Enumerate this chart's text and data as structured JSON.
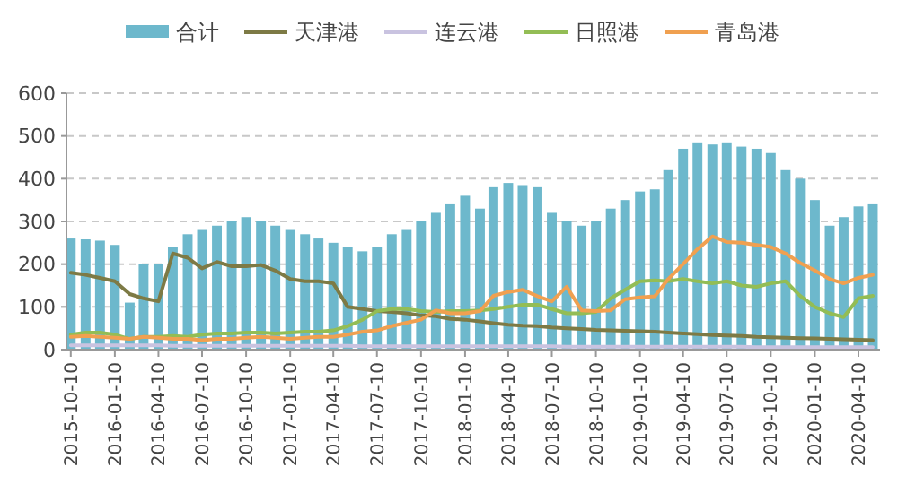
{
  "chart_data": {
    "type": "line",
    "x": [
      "2015-10-10",
      "2015-11-10",
      "2015-12-10",
      "2016-01-10",
      "2016-02-10",
      "2016-03-10",
      "2016-04-10",
      "2016-05-10",
      "2016-06-10",
      "2016-07-10",
      "2016-08-10",
      "2016-09-10",
      "2016-10-10",
      "2016-11-10",
      "2016-12-10",
      "2017-01-10",
      "2017-02-10",
      "2017-03-10",
      "2017-04-10",
      "2017-05-10",
      "2017-06-10",
      "2017-07-10",
      "2017-08-10",
      "2017-09-10",
      "2017-10-10",
      "2017-11-10",
      "2017-12-10",
      "2018-01-10",
      "2018-02-10",
      "2018-03-10",
      "2018-04-10",
      "2018-05-10",
      "2018-06-10",
      "2018-07-10",
      "2018-08-10",
      "2018-09-10",
      "2018-10-10",
      "2018-11-10",
      "2018-12-10",
      "2019-01-10",
      "2019-02-10",
      "2019-03-10",
      "2019-04-10",
      "2019-05-10",
      "2019-06-10",
      "2019-07-10",
      "2019-08-10",
      "2019-09-10",
      "2019-10-10",
      "2019-11-10",
      "2019-12-10",
      "2020-01-10",
      "2020-02-10",
      "2020-03-10",
      "2020-04-10",
      "2020-05-10"
    ],
    "series": [
      {
        "name": "合计",
        "type": "bar",
        "color": "#6db8cc",
        "values": [
          260,
          258,
          255,
          245,
          110,
          200,
          200,
          240,
          270,
          280,
          290,
          300,
          310,
          300,
          290,
          280,
          270,
          260,
          250,
          240,
          230,
          240,
          270,
          280,
          300,
          320,
          340,
          360,
          330,
          380,
          390,
          385,
          380,
          320,
          300,
          290,
          300,
          330,
          350,
          370,
          375,
          420,
          470,
          485,
          480,
          485,
          475,
          470,
          460,
          420,
          400,
          350,
          290,
          310,
          335,
          340
        ]
      },
      {
        "name": "天津港",
        "color": "#7d7a45",
        "values": [
          180,
          175,
          168,
          160,
          130,
          120,
          113,
          225,
          215,
          190,
          205,
          195,
          195,
          198,
          185,
          165,
          160,
          160,
          155,
          100,
          95,
          90,
          88,
          85,
          80,
          78,
          72,
          70,
          66,
          62,
          58,
          56,
          55,
          52,
          50,
          48,
          46,
          45,
          44,
          43,
          42,
          40,
          38,
          36,
          34,
          33,
          32,
          30,
          29,
          28,
          27,
          26,
          25,
          24,
          23,
          22
        ]
      },
      {
        "name": "连云港",
        "color": "#c9c3e0",
        "values": [
          10,
          10,
          10,
          10,
          10,
          10,
          10,
          9,
          9,
          9,
          9,
          9,
          9,
          9,
          9,
          9,
          9,
          9,
          9,
          9,
          8,
          8,
          8,
          8,
          8,
          8,
          8,
          8,
          8,
          8,
          8,
          8,
          8,
          8,
          7,
          7,
          7,
          7,
          7,
          7,
          7,
          7,
          7,
          7,
          7,
          7,
          7,
          6,
          6,
          6,
          6,
          6,
          6,
          6,
          6,
          6
        ]
      },
      {
        "name": "日照港",
        "color": "#93bd55",
        "values": [
          35,
          40,
          40,
          35,
          25,
          30,
          30,
          32,
          30,
          35,
          38,
          38,
          40,
          40,
          38,
          40,
          42,
          42,
          45,
          55,
          70,
          90,
          95,
          95,
          90,
          88,
          90,
          90,
          92,
          95,
          100,
          105,
          105,
          95,
          85,
          85,
          88,
          120,
          140,
          160,
          162,
          160,
          165,
          160,
          155,
          160,
          150,
          147,
          155,
          160,
          126,
          100,
          85,
          76,
          120,
          126
        ]
      },
      {
        "name": "青岛港",
        "color": "#f0a050",
        "values": [
          30,
          32,
          30,
          28,
          25,
          30,
          28,
          25,
          25,
          22,
          25,
          25,
          28,
          30,
          28,
          25,
          28,
          30,
          30,
          35,
          42,
          45,
          55,
          63,
          70,
          92,
          85,
          85,
          90,
          126,
          135,
          140,
          125,
          113,
          147,
          92,
          90,
          92,
          118,
          122,
          125,
          165,
          200,
          235,
          265,
          252,
          250,
          245,
          240,
          225,
          203,
          185,
          165,
          155,
          168,
          175
        ]
      }
    ],
    "xlim": [
      "2015-10-01",
      "2020-05-25"
    ],
    "xticks": [
      "2015-10-10",
      "2016-01-10",
      "2016-04-10",
      "2016-07-10",
      "2016-10-10",
      "2017-01-10",
      "2017-04-10",
      "2017-07-10",
      "2017-10-10",
      "2018-01-10",
      "2018-04-10",
      "2018-07-10",
      "2018-10-10",
      "2019-01-10",
      "2019-04-10",
      "2019-07-10",
      "2019-10-10",
      "2020-01-10",
      "2020-04-10"
    ],
    "ylim": [
      0,
      600
    ],
    "yticks": [
      0,
      100,
      200,
      300,
      400,
      500,
      600
    ],
    "grid": "y",
    "legend": "top"
  }
}
